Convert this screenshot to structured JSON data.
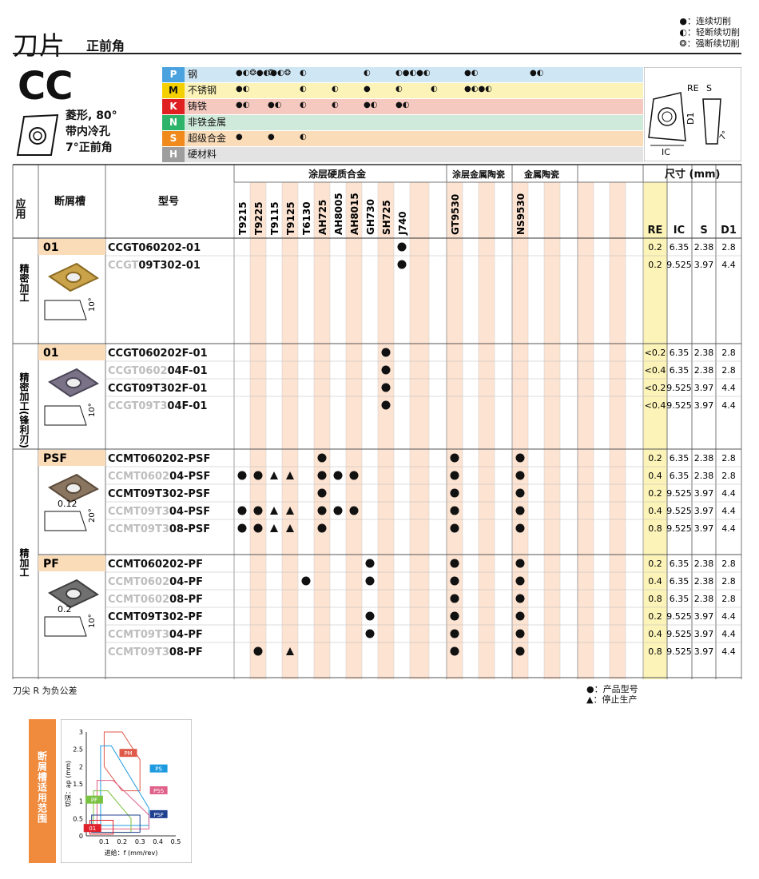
{
  "header": {
    "title": "刀片",
    "subtitle": "正前角",
    "legend": [
      "●：连续切削",
      "◐：轻断续切削",
      "❂：强断续切削"
    ]
  },
  "insert": {
    "code": "CC",
    "desc": [
      "菱形, 80°",
      "带内冷孔",
      "7°正前角"
    ]
  },
  "materials": [
    {
      "code": "P",
      "name": "钢",
      "color": "#4aa3df",
      "bg": "#cfe6f4",
      "marks": [
        "●◐❂●◐●◐❂",
        "❂",
        "◐",
        "",
        "◐",
        "◐●◐●◐",
        "",
        "●◐",
        "",
        "●◐"
      ]
    },
    {
      "code": "M",
      "name": "不锈钢",
      "color": "#f5d000",
      "bg": "#fbf3b7",
      "marks": [
        "●◐",
        "",
        "◐",
        "◐",
        "●",
        "◐",
        "◐",
        "●◐●◐"
      ]
    },
    {
      "code": "K",
      "name": "铸铁",
      "color": "#e02020",
      "bg": "#f6c9c0",
      "marks": [
        "●◐",
        "●◐",
        "◐",
        "◐",
        "●◐",
        "●◐"
      ]
    },
    {
      "code": "N",
      "name": "非铁金属",
      "color": "#2db36a",
      "bg": "#cfeadb",
      "marks": []
    },
    {
      "code": "S",
      "name": "超级合金",
      "color": "#f08a1c",
      "bg": "#fbdcb8",
      "marks": [
        "●",
        "●",
        "◐"
      ]
    },
    {
      "code": "H",
      "name": "硬材料",
      "color": "#9e9e9e",
      "bg": "#e3e3e3",
      "marks": []
    }
  ],
  "labels": {
    "application": "应用",
    "chipbreaker": "断屑槽",
    "model": "型号",
    "coated_carbide": "涂层硬质合金",
    "coated_cermet": "涂层金属陶瓷",
    "cermet": "金属陶瓷",
    "dims": "尺寸 (mm)",
    "dim_cols": [
      "RE",
      "IC",
      "S",
      "D1"
    ],
    "diagram": [
      "RE",
      "S",
      "D1",
      "IC",
      "7°"
    ]
  },
  "grades": [
    "T9215",
    "T9225",
    "T9115",
    "T9125",
    "T6130",
    "AH725",
    "AH8005",
    "AH8015",
    "GH730",
    "SH725",
    "J740",
    "GT9530",
    "NS9530"
  ],
  "sections": [
    {
      "app": "精密加工",
      "breaker": "01",
      "angle": "10°",
      "rows": [
        {
          "prefix": "",
          "model": "CCGT060202-01",
          "marks": {
            "J740": "●"
          },
          "dims": [
            "0.2",
            "6.35",
            "2.38",
            "2.8"
          ]
        },
        {
          "prefix": "CCGT",
          "model": "09T302-01",
          "marks": {
            "J740": "●"
          },
          "dims": [
            "0.2",
            "9.525",
            "3.97",
            "4.4"
          ]
        }
      ]
    },
    {
      "app": "精密加工(锋利刃)",
      "breaker": "01",
      "angle": "10°",
      "rows": [
        {
          "prefix": "",
          "model": "CCGT060202F-01",
          "marks": {
            "SH725": "●"
          },
          "dims": [
            "<0.2",
            "6.35",
            "2.38",
            "2.8"
          ]
        },
        {
          "prefix": "CCGT0602",
          "model": "04F-01",
          "marks": {
            "SH725": "●"
          },
          "dims": [
            "<0.4",
            "6.35",
            "2.38",
            "2.8"
          ]
        },
        {
          "prefix": "",
          "model": "CCGT09T302F-01",
          "marks": {
            "SH725": "●"
          },
          "dims": [
            "<0.2",
            "9.525",
            "3.97",
            "4.4"
          ]
        },
        {
          "prefix": "CCGT09T3",
          "model": "04F-01",
          "marks": {
            "SH725": "●"
          },
          "dims": [
            "<0.4",
            "9.525",
            "3.97",
            "4.4"
          ]
        }
      ]
    },
    {
      "app": "精加工",
      "breaker": "PSF",
      "angle": "20°",
      "edge": "0.12",
      "rows": [
        {
          "prefix": "",
          "model": "CCMT060202-PSF",
          "marks": {
            "AH725": "●",
            "GT9530": "●",
            "NS9530": "●"
          },
          "dims": [
            "0.2",
            "6.35",
            "2.38",
            "2.8"
          ]
        },
        {
          "prefix": "CCMT0602",
          "model": "04-PSF",
          "marks": {
            "T9215": "●",
            "T9225": "●",
            "T9115": "▲",
            "T9125": "▲",
            "AH725": "●",
            "AH8005": "●",
            "AH8015": "●",
            "GT9530": "●",
            "NS9530": "●"
          },
          "dims": [
            "0.4",
            "6.35",
            "2.38",
            "2.8"
          ]
        },
        {
          "prefix": "",
          "model": "CCMT09T302-PSF",
          "marks": {
            "AH725": "●",
            "GT9530": "●",
            "NS9530": "●"
          },
          "dims": [
            "0.2",
            "9.525",
            "3.97",
            "4.4"
          ]
        },
        {
          "prefix": "CCMT09T3",
          "model": "04-PSF",
          "marks": {
            "T9215": "●",
            "T9225": "●",
            "T9115": "▲",
            "T9125": "▲",
            "AH725": "●",
            "AH8005": "●",
            "AH8015": "●",
            "GT9530": "●",
            "NS9530": "●"
          },
          "dims": [
            "0.4",
            "9.525",
            "3.97",
            "4.4"
          ]
        },
        {
          "prefix": "CCMT09T3",
          "model": "08-PSF",
          "marks": {
            "T9215": "●",
            "T9225": "●",
            "T9115": "▲",
            "T9125": "▲",
            "AH725": "●",
            "GT9530": "●",
            "NS9530": "●"
          },
          "dims": [
            "0.8",
            "9.525",
            "3.97",
            "4.4"
          ]
        }
      ]
    },
    {
      "app": "",
      "breaker": "PF",
      "angle": "10°",
      "edge": "0.2",
      "rows": [
        {
          "prefix": "",
          "model": "CCMT060202-PF",
          "marks": {
            "GH730": "●",
            "GT9530": "●",
            "NS9530": "●"
          },
          "dims": [
            "0.2",
            "6.35",
            "2.38",
            "2.8"
          ]
        },
        {
          "prefix": "CCMT0602",
          "model": "04-PF",
          "marks": {
            "T6130": "●",
            "GH730": "●",
            "GT9530": "●",
            "NS9530": "●"
          },
          "dims": [
            "0.4",
            "6.35",
            "2.38",
            "2.8"
          ]
        },
        {
          "prefix": "CCMT0602",
          "model": "08-PF",
          "marks": {
            "GT9530": "●",
            "NS9530": "●"
          },
          "dims": [
            "0.8",
            "6.35",
            "2.38",
            "2.8"
          ]
        },
        {
          "prefix": "",
          "model": "CCMT09T302-PF",
          "marks": {
            "GH730": "●",
            "GT9530": "●",
            "NS9530": "●"
          },
          "dims": [
            "0.2",
            "9.525",
            "3.97",
            "4.4"
          ]
        },
        {
          "prefix": "CCMT09T3",
          "model": "04-PF",
          "marks": {
            "GH730": "●",
            "GT9530": "●",
            "NS9530": "●"
          },
          "dims": [
            "0.4",
            "9.525",
            "3.97",
            "4.4"
          ]
        },
        {
          "prefix": "CCMT09T3",
          "model": "08-PF",
          "marks": {
            "T9225": "●",
            "T9125": "▲",
            "GT9530": "●",
            "NS9530": "●"
          },
          "dims": [
            "0.8",
            "9.525",
            "3.97",
            "4.4"
          ]
        }
      ]
    }
  ],
  "footnotes": {
    "left": "刀尖 R 为负公差",
    "legend": [
      "●：产品型号",
      "▲：停止生产"
    ]
  },
  "chart_data": {
    "type": "area",
    "side_label": "断屑槽适用范围",
    "xlabel": "进给：f (mm/rev)",
    "ylabel": "切深：ap (mm)",
    "xticks": [
      "0.1",
      "0.2",
      "0.3",
      "0.4",
      "0.5"
    ],
    "yticks": [
      "0",
      "0.5",
      "1",
      "1.5",
      "2",
      "2.5",
      "3"
    ],
    "xlim": [
      0,
      0.5
    ],
    "ylim": [
      0,
      3
    ],
    "series": [
      {
        "name": "PM",
        "color": "#e05a4a"
      },
      {
        "name": "PS",
        "color": "#1e9be0"
      },
      {
        "name": "PSS",
        "color": "#e0608a"
      },
      {
        "name": "PF",
        "color": "#7cc242"
      },
      {
        "name": "PSF",
        "color": "#1f3f8f"
      },
      {
        "name": "01",
        "color": "#e0202a"
      }
    ]
  }
}
